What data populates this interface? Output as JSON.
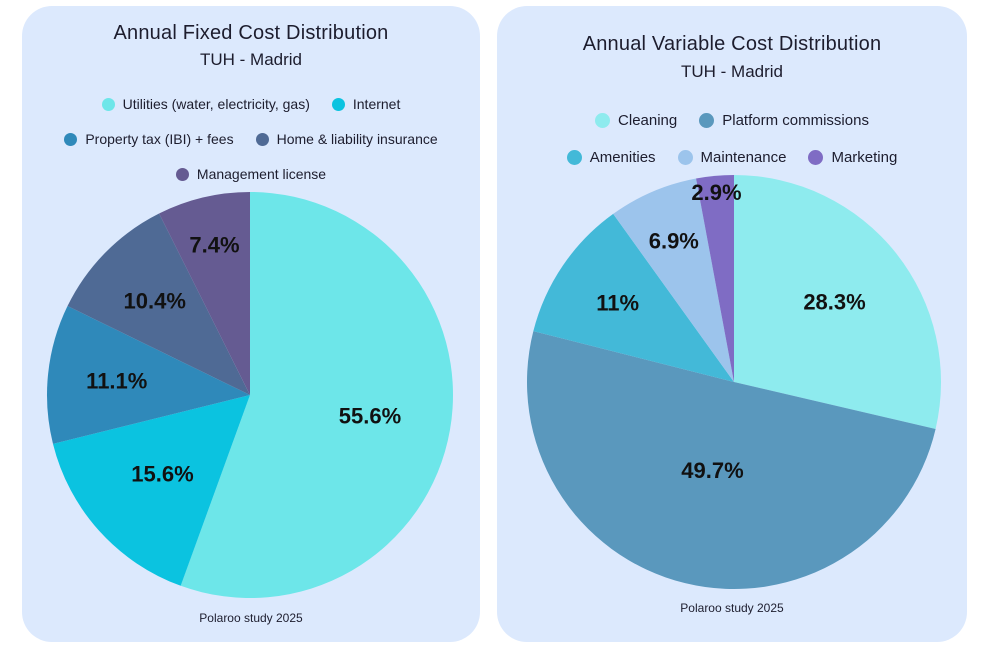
{
  "chart_data": [
    {
      "type": "pie",
      "title": "Annual Fixed Cost Distribution",
      "subtitle": "TUH - Madrid",
      "source": "Polaroo study 2025",
      "legend_rows": [
        [
          0,
          1
        ],
        [
          2,
          3
        ],
        [
          4
        ]
      ],
      "slices": [
        {
          "name": "Utilities (water, electricity, gas)",
          "value": 55.6,
          "label": "55.6%",
          "color": "#6de6e9"
        },
        {
          "name": "Internet",
          "value": 15.6,
          "label": "15.6%",
          "color": "#0bc3e0"
        },
        {
          "name": "Property tax (IBI) + fees",
          "value": 11.1,
          "label": "11.1%",
          "color": "#2f89ba"
        },
        {
          "name": "Home & liability insurance",
          "value": 10.4,
          "label": "10.4%",
          "color": "#4f6a95"
        },
        {
          "name": "Management license",
          "value": 7.4,
          "label": "7.4%",
          "color": "#655b92"
        }
      ]
    },
    {
      "type": "pie",
      "title": "Annual Variable Cost Distribution",
      "subtitle": "TUH - Madrid",
      "source": "Polaroo study 2025",
      "legend_rows": [
        [
          0,
          1
        ],
        [
          2,
          3,
          4
        ]
      ],
      "slices": [
        {
          "name": "Cleaning",
          "value": 28.3,
          "label": "28.3%",
          "color": "#8eebee"
        },
        {
          "name": "Platform commissions",
          "value": 49.7,
          "label": "49.7%",
          "color": "#5a98bd"
        },
        {
          "name": "Amenities",
          "value": 11,
          "label": "11%",
          "color": "#43b9d8"
        },
        {
          "name": "Maintenance",
          "value": 6.9,
          "label": "6.9%",
          "color": "#9cc4ec"
        },
        {
          "name": "Marketing",
          "value": 2.9,
          "label": "2.9%",
          "color": "#7f6cc4"
        }
      ]
    }
  ]
}
